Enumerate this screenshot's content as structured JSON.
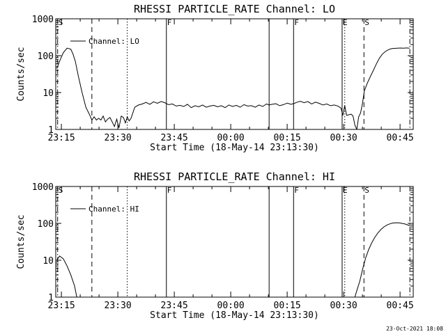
{
  "footer_timestamp": "23-Oct-2021 18:08",
  "chart_data": [
    {
      "type": "line",
      "title": "RHESSI PARTICLE_RATE Channel: LO",
      "xlabel": "Start Time (18-May-14 23:13:30)",
      "ylabel": "Counts/sec",
      "y_scale": "log",
      "ylim": [
        1,
        1000
      ],
      "xlim_minutes": [
        0,
        95
      ],
      "x_ticks": [
        {
          "minute": 1.5,
          "label": "23:15"
        },
        {
          "minute": 16.5,
          "label": "23:30"
        },
        {
          "minute": 31.5,
          "label": "23:45"
        },
        {
          "minute": 46.5,
          "label": "00:00"
        },
        {
          "minute": 61.5,
          "label": "00:15"
        },
        {
          "minute": 76.5,
          "label": "00:30"
        },
        {
          "minute": 91.5,
          "label": "00:45"
        }
      ],
      "y_ticks": [
        {
          "value": 1,
          "label": "1"
        },
        {
          "value": 10,
          "label": "10"
        },
        {
          "value": 100,
          "label": "100"
        },
        {
          "value": 1000,
          "label": "1000"
        }
      ],
      "legend": {
        "label": "Channel: LO",
        "position": "top-left"
      },
      "event_lines": [
        {
          "minute": 0.5,
          "style": "dashdot",
          "label": "S"
        },
        {
          "minute": 9.6,
          "style": "dashed",
          "label": ""
        },
        {
          "minute": 19.0,
          "style": "dotted",
          "label": ""
        },
        {
          "minute": 29.4,
          "style": "solid",
          "label": "F"
        },
        {
          "minute": 56.7,
          "style": "solid",
          "label": ""
        },
        {
          "minute": 63.2,
          "style": "solid",
          "label": "F"
        },
        {
          "minute": 76.1,
          "style": "solid",
          "label": "E"
        },
        {
          "minute": 76.8,
          "style": "dotted",
          "label": ""
        },
        {
          "minute": 81.9,
          "style": "dashed",
          "label": "S"
        },
        {
          "minute": 94.1,
          "style": "dashdot",
          "label": ""
        }
      ],
      "series": [
        {
          "color": "#000000",
          "x": [
            0.3,
            1.0,
            2.0,
            3.0,
            4.0,
            4.6,
            5.2,
            6.0,
            7.0,
            8.0,
            9.0,
            9.6,
            10.2,
            10.8,
            11.4,
            12.0,
            12.6,
            13.2,
            13.8,
            14.4,
            15.0,
            15.6,
            16.2,
            16.8,
            17.4,
            18.0,
            18.5,
            19.0,
            19.5,
            20.0,
            21.0,
            22.0,
            23.0,
            24.0,
            25.0,
            26.0,
            27.0,
            28.0,
            29.0,
            29.4,
            30.0,
            31.0,
            32.0,
            33.0,
            34.0,
            35.0,
            36.0,
            37.0,
            38.0,
            39.0,
            40.0,
            41.0,
            42.0,
            43.0,
            44.0,
            45.0,
            46.0,
            47.0,
            48.0,
            49.0,
            50.0,
            51.0,
            52.0,
            53.0,
            54.0,
            55.0,
            56.0,
            56.7,
            57.5,
            58.5,
            59.5,
            60.5,
            61.5,
            62.5,
            63.2,
            64.0,
            65.0,
            66.0,
            67.0,
            68.0,
            69.0,
            70.0,
            71.0,
            72.0,
            73.0,
            74.0,
            75.0,
            75.8,
            76.3,
            76.8,
            77.3,
            77.9,
            78.5,
            79.0,
            79.5,
            80.0,
            80.5,
            81.0,
            81.5,
            82.0,
            82.8,
            83.6,
            84.4,
            85.2,
            86.0,
            86.8,
            87.6,
            88.4,
            89.2,
            90.0,
            90.8,
            91.6,
            92.4,
            93.2,
            94.0
          ],
          "y": [
            45,
            70,
            120,
            160,
            150,
            110,
            70,
            28,
            10,
            4,
            2.5,
            1.8,
            2.2,
            1.8,
            2.0,
            1.8,
            2.3,
            1.6,
            1.9,
            2.1,
            1.6,
            1.2,
            1.9,
            1.1,
            2.3,
            2.1,
            1.5,
            2.2,
            1.7,
            2.0,
            4.0,
            4.6,
            4.9,
            5.4,
            4.8,
            5.6,
            5.1,
            5.7,
            5.3,
            5.0,
            4.7,
            4.9,
            4.3,
            4.5,
            4.2,
            4.8,
            3.9,
            4.4,
            4.1,
            4.6,
            4.0,
            4.3,
            4.5,
            4.1,
            4.4,
            3.9,
            4.6,
            4.2,
            4.5,
            4.0,
            4.7,
            4.3,
            4.4,
            4.0,
            4.6,
            4.2,
            4.9,
            4.6,
            4.8,
            5.0,
            4.4,
            4.7,
            5.2,
            4.8,
            5.0,
            5.4,
            5.8,
            5.3,
            5.7,
            4.9,
            5.5,
            5.1,
            4.6,
            4.9,
            4.4,
            4.6,
            4.3,
            3.8,
            2.4,
            4.4,
            2.4,
            2.5,
            2.6,
            2.3,
            1.3,
            1.0,
            2.2,
            2.8,
            5.0,
            11.0,
            18.0,
            27.0,
            40.0,
            60.0,
            85.0,
            110.0,
            130.0,
            145.0,
            155.0,
            158.0,
            160.0,
            161.0,
            160.0,
            162.0,
            160.0
          ]
        }
      ]
    },
    {
      "type": "line",
      "title": "RHESSI PARTICLE_RATE Channel: HI",
      "xlabel": "Start Time (18-May-14 23:13:30)",
      "ylabel": "Counts/sec",
      "y_scale": "log",
      "ylim": [
        1,
        1000
      ],
      "xlim_minutes": [
        0,
        95
      ],
      "x_ticks": [
        {
          "minute": 1.5,
          "label": "23:15"
        },
        {
          "minute": 16.5,
          "label": "23:30"
        },
        {
          "minute": 31.5,
          "label": "23:45"
        },
        {
          "minute": 46.5,
          "label": "00:00"
        },
        {
          "minute": 61.5,
          "label": "00:15"
        },
        {
          "minute": 76.5,
          "label": "00:30"
        },
        {
          "minute": 91.5,
          "label": "00:45"
        }
      ],
      "y_ticks": [
        {
          "value": 1,
          "label": "1"
        },
        {
          "value": 10,
          "label": "10"
        },
        {
          "value": 100,
          "label": "100"
        },
        {
          "value": 1000,
          "label": "1000"
        }
      ],
      "legend": {
        "label": "Channel: HI",
        "position": "top-left"
      },
      "event_lines": [
        {
          "minute": 0.5,
          "style": "dashdot",
          "label": "S"
        },
        {
          "minute": 9.6,
          "style": "dashed",
          "label": ""
        },
        {
          "minute": 19.0,
          "style": "dotted",
          "label": ""
        },
        {
          "minute": 29.4,
          "style": "solid",
          "label": "F"
        },
        {
          "minute": 56.7,
          "style": "solid",
          "label": ""
        },
        {
          "minute": 63.2,
          "style": "solid",
          "label": "F"
        },
        {
          "minute": 76.1,
          "style": "solid",
          "label": "E"
        },
        {
          "minute": 76.8,
          "style": "dotted",
          "label": ""
        },
        {
          "minute": 81.9,
          "style": "dashed",
          "label": "S"
        },
        {
          "minute": 94.1,
          "style": "dashdot",
          "label": ""
        }
      ],
      "series": [
        {
          "color": "#000000",
          "x": [
            0.3,
            1.0,
            2.0,
            3.0,
            4.0,
            5.0,
            5.6,
            79.5,
            80.0,
            80.8,
            81.6,
            82.4,
            83.2,
            84.0,
            84.8,
            85.6,
            86.4,
            87.2,
            88.0,
            88.8,
            89.6,
            90.4,
            91.2,
            92.0,
            92.8,
            93.6,
            94.2
          ],
          "y": [
            10,
            13,
            11,
            7,
            4,
            2,
            1,
            1,
            1.5,
            2.7,
            6,
            12,
            20,
            30,
            42,
            55,
            68,
            80,
            90,
            97,
            102,
            104,
            103,
            100,
            96,
            90,
            85
          ]
        }
      ]
    }
  ]
}
